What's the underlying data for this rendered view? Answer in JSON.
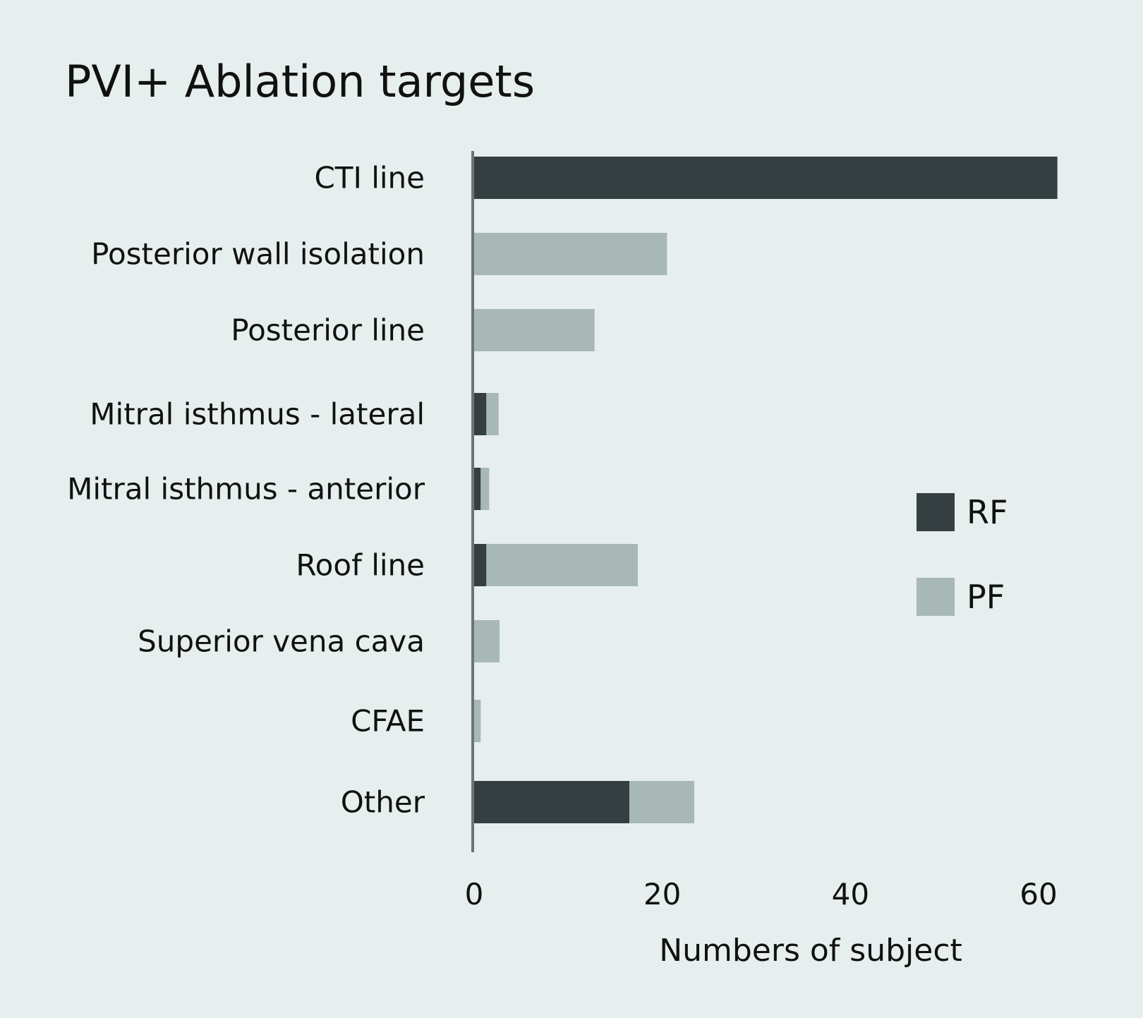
{
  "chart_data": {
    "type": "bar",
    "orientation": "horizontal",
    "stacked": true,
    "title": "PVI+ Ablation targets",
    "xlabel": "Numbers of subject",
    "ylabel": "",
    "xlim": [
      0,
      62
    ],
    "xticks": [
      0,
      20,
      40,
      60
    ],
    "grid": false,
    "legend_position": "right",
    "categories": [
      "CTI line",
      "Posterior wall isolation",
      "Posterior line",
      "Mitral isthmus - lateral",
      "Mitral isthmus - anterior",
      "Roof line",
      "Superior vena cava",
      "CFAE",
      "Other"
    ],
    "series": [
      {
        "name": "RF",
        "color": "#353f41",
        "values": [
          62,
          0,
          0,
          1.3,
          0.7,
          1.3,
          0,
          0,
          16.5
        ]
      },
      {
        "name": "PF",
        "color": "#a8b8b6",
        "values": [
          0,
          20.5,
          12.8,
          1.3,
          0.9,
          16.1,
          2.7,
          0.7,
          6.9
        ]
      }
    ]
  }
}
